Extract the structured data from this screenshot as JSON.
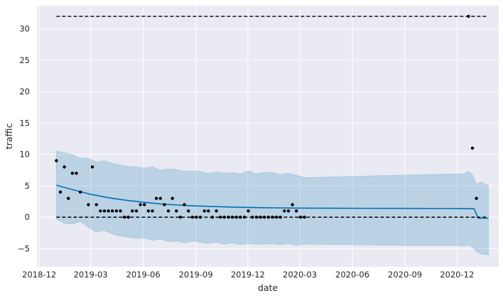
{
  "chart_data": {
    "type": "line",
    "xlabel": "date",
    "ylabel": "traffic",
    "x_tick_labels": [
      "2018-12",
      "2019-03",
      "2019-06",
      "2019-09",
      "2019-12",
      "2020-03",
      "2020-06",
      "2020-09",
      "2020-12"
    ],
    "x_ticks": [
      "2018-12-01",
      "2019-03-01",
      "2019-06-01",
      "2019-09-01",
      "2019-12-01",
      "2020-03-01",
      "2020-06-01",
      "2020-09-01",
      "2020-12-01"
    ],
    "y_ticks": [
      -5,
      0,
      5,
      10,
      15,
      20,
      25,
      30
    ],
    "y_tick_labels": [
      "−5",
      "0",
      "5",
      "10",
      "15",
      "20",
      "25",
      "30"
    ],
    "xlim": [
      "2018-11-27",
      "2021-02-12"
    ],
    "ylim": [
      -7.9,
      33.7
    ],
    "grid": true,
    "colors": {
      "background": "#eaeaf2",
      "grid": "#ffffff",
      "forecast_line": "#0072b2",
      "interval_fill": "#0072b2",
      "observed_points": "#000000",
      "capacity_lines": "#000000"
    },
    "series": [
      {
        "kind": "observed_points",
        "x": [
          "2018-12-31",
          "2019-01-07",
          "2019-01-14",
          "2019-01-21",
          "2019-01-28",
          "2019-02-04",
          "2019-02-11",
          "2019-02-25",
          "2019-03-04",
          "2019-03-11",
          "2019-03-18",
          "2019-03-25",
          "2019-04-01",
          "2019-04-08",
          "2019-04-15",
          "2019-04-22",
          "2019-04-29",
          "2019-05-06",
          "2019-05-13",
          "2019-05-20",
          "2019-05-27",
          "2019-06-03",
          "2019-06-10",
          "2019-06-17",
          "2019-06-24",
          "2019-07-01",
          "2019-07-08",
          "2019-07-15",
          "2019-07-22",
          "2019-07-29",
          "2019-08-05",
          "2019-08-12",
          "2019-08-19",
          "2019-08-26",
          "2019-09-02",
          "2019-09-09",
          "2019-09-16",
          "2019-09-23",
          "2019-09-30",
          "2019-10-07",
          "2019-10-14",
          "2019-10-21",
          "2019-10-28",
          "2019-11-04",
          "2019-11-11",
          "2019-11-18",
          "2019-11-25",
          "2019-12-02",
          "2019-12-09",
          "2019-12-16",
          "2019-12-23",
          "2019-12-30",
          "2020-01-06",
          "2020-01-13",
          "2020-01-20",
          "2020-01-27",
          "2020-02-03",
          "2020-02-10",
          "2020-02-17",
          "2020-02-24",
          "2020-03-02",
          "2020-03-09",
          "2020-12-21",
          "2020-12-28",
          "2021-01-04"
        ],
        "y": [
          9,
          4,
          8,
          3,
          7,
          7,
          4,
          2,
          8,
          2,
          1,
          1,
          1,
          1,
          1,
          1,
          0,
          0,
          1,
          1,
          2,
          2,
          1,
          1,
          3,
          3,
          2,
          1,
          3,
          1,
          0,
          2,
          1,
          0,
          0,
          0,
          1,
          1,
          0,
          1,
          0,
          0,
          0,
          0,
          0,
          0,
          0,
          1,
          0,
          0,
          0,
          0,
          0,
          0,
          0,
          0,
          1,
          1,
          2,
          1,
          0,
          0,
          32,
          11,
          3
        ]
      },
      {
        "kind": "forecast_yhat",
        "x": [
          "2018-12-31",
          "2019-02-01",
          "2019-03-01",
          "2019-04-01",
          "2019-05-01",
          "2019-06-01",
          "2019-07-01",
          "2019-08-01",
          "2019-09-01",
          "2019-10-01",
          "2019-11-01",
          "2019-12-01",
          "2020-01-01",
          "2020-03-01",
          "2020-06-01",
          "2020-09-01",
          "2020-12-01",
          "2020-12-31",
          "2021-01-07",
          "2021-01-25"
        ],
        "y": [
          5.1,
          4.3,
          3.65,
          3.1,
          2.7,
          2.4,
          2.12,
          1.93,
          1.8,
          1.7,
          1.62,
          1.56,
          1.5,
          1.45,
          1.42,
          1.4,
          1.38,
          1.35,
          -0.15,
          -0.15
        ]
      },
      {
        "kind": "uncertainty_interval",
        "x": [
          "2018-12-31",
          "2019-01-14",
          "2019-01-28",
          "2019-02-11",
          "2019-02-25",
          "2019-03-11",
          "2019-03-25",
          "2019-04-08",
          "2019-04-22",
          "2019-05-06",
          "2019-05-20",
          "2019-06-03",
          "2019-06-17",
          "2019-07-01",
          "2019-07-15",
          "2019-07-29",
          "2019-08-12",
          "2019-08-26",
          "2019-09-09",
          "2019-09-23",
          "2019-10-07",
          "2019-10-21",
          "2019-11-04",
          "2019-11-18",
          "2019-12-02",
          "2019-12-16",
          "2019-12-30",
          "2020-01-13",
          "2020-01-27",
          "2020-02-10",
          "2020-02-24",
          "2020-03-09",
          "2020-06-01",
          "2020-09-01",
          "2020-12-01",
          "2020-12-14",
          "2020-12-21",
          "2020-12-28",
          "2021-01-04",
          "2021-01-14",
          "2021-01-25"
        ],
        "upper": [
          10.5,
          10.3,
          10.0,
          9.4,
          9.4,
          8.8,
          9.0,
          8.6,
          8.3,
          8.1,
          8.0,
          7.8,
          8.0,
          7.5,
          7.7,
          7.6,
          7.3,
          7.4,
          7.3,
          7.0,
          7.2,
          7.0,
          7.1,
          6.9,
          7.4,
          6.9,
          7.2,
          7.1,
          6.8,
          7.0,
          6.7,
          6.3,
          6.5,
          6.7,
          6.9,
          6.9,
          7.3,
          6.8,
          5.3,
          5.6,
          5.0
        ],
        "lower": [
          -0.3,
          -1.0,
          -1.1,
          -0.7,
          -1.6,
          -2.4,
          -2.1,
          -2.7,
          -3.0,
          -3.2,
          -3.4,
          -3.3,
          -3.7,
          -3.5,
          -3.9,
          -3.8,
          -4.1,
          -3.8,
          -4.0,
          -4.2,
          -4.0,
          -4.3,
          -4.1,
          -4.4,
          -4.2,
          -4.3,
          -4.3,
          -4.2,
          -4.4,
          -4.2,
          -4.5,
          -4.3,
          -4.4,
          -4.5,
          -4.5,
          -4.6,
          -4.4,
          -4.8,
          -5.5,
          -5.9,
          -6.0
        ]
      },
      {
        "kind": "capacity_cap",
        "x": [
          "2018-12-31",
          "2021-01-25"
        ],
        "y": [
          32,
          32
        ]
      },
      {
        "kind": "capacity_floor",
        "x": [
          "2018-12-31",
          "2021-01-25"
        ],
        "y": [
          0,
          0
        ]
      }
    ]
  }
}
